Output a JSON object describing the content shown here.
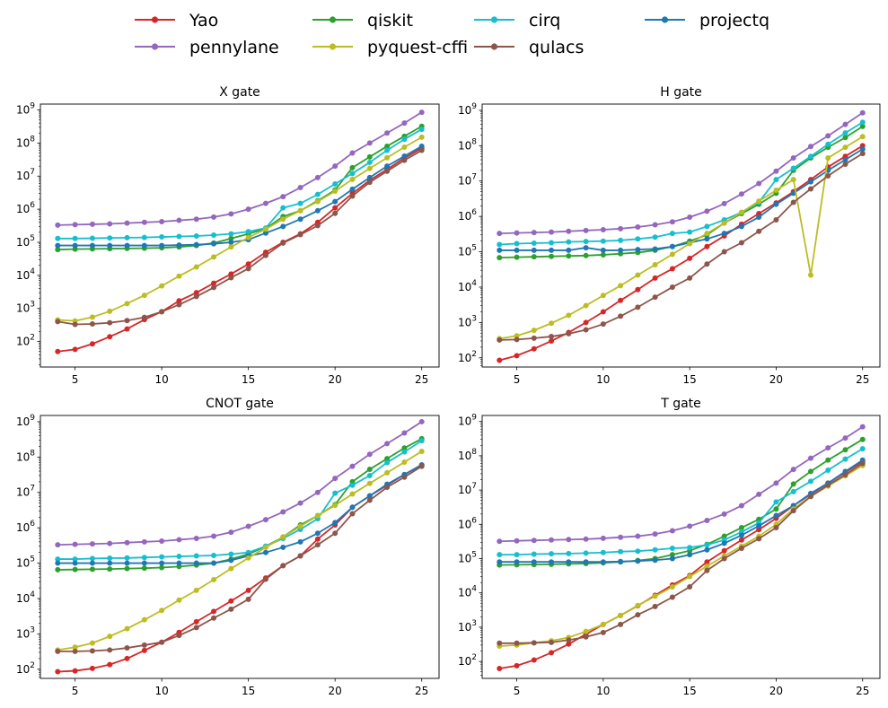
{
  "legend": {
    "placement": "top-center",
    "columns": 4,
    "entries": [
      {
        "name": "Yao",
        "color": "#d62728"
      },
      {
        "name": "qiskit",
        "color": "#2ca02c"
      },
      {
        "name": "cirq",
        "color": "#17becf"
      },
      {
        "name": "projectq",
        "color": "#1f77b4"
      },
      {
        "name": "pennylane",
        "color": "#9467bd"
      },
      {
        "name": "pyquest-cffi",
        "color": "#bcbd22"
      },
      {
        "name": "qulacs",
        "color": "#8c564b"
      }
    ]
  },
  "chart_data": [
    {
      "type": "line",
      "title": "X gate",
      "xlabel": "",
      "ylabel": "",
      "yscale": "log",
      "xlim": [
        3,
        26
      ],
      "ylim": [
        17,
        1500000000
      ],
      "xticks": [
        5,
        10,
        15,
        20,
        25
      ],
      "yticks": [
        "10^2",
        "10^3",
        "10^4",
        "10^5",
        "10^6",
        "10^7",
        "10^8",
        "10^9"
      ],
      "x": [
        4,
        5,
        6,
        7,
        8,
        9,
        10,
        11,
        12,
        13,
        14,
        15,
        16,
        17,
        18,
        19,
        20,
        21,
        22,
        23,
        24,
        25
      ],
      "series": [
        {
          "name": "Yao",
          "color": "#d62728",
          "values": [
            50,
            58,
            85,
            140,
            240,
            460,
            800,
            1700,
            3000,
            5800,
            11000,
            22000,
            50000,
            100000,
            180000,
            400000,
            1100000,
            3000000,
            7500000,
            16000000,
            35000000,
            70000000
          ]
        },
        {
          "name": "qiskit",
          "color": "#2ca02c",
          "values": [
            60000,
            62000,
            63000,
            64000,
            65000,
            66000,
            68000,
            72000,
            80000,
            95000,
            130000,
            180000,
            260000,
            600000,
            900000,
            1800000,
            3800000,
            18000000,
            38000000,
            80000000,
            160000000,
            320000000
          ]
        },
        {
          "name": "cirq",
          "color": "#17becf",
          "values": [
            130000,
            130000,
            132000,
            135000,
            138000,
            140000,
            145000,
            150000,
            155000,
            165000,
            180000,
            210000,
            270000,
            1100000,
            1500000,
            2800000,
            5800000,
            12000000,
            26000000,
            60000000,
            130000000,
            260000000
          ]
        },
        {
          "name": "projectq",
          "color": "#1f77b4",
          "values": [
            80000,
            80000,
            80000,
            80000,
            80000,
            80000,
            80000,
            82000,
            85000,
            90000,
            100000,
            120000,
            190000,
            300000,
            500000,
            900000,
            1700000,
            4000000,
            9000000,
            20000000,
            40000000,
            80000000
          ]
        },
        {
          "name": "pennylane",
          "color": "#9467bd",
          "values": [
            330000,
            340000,
            350000,
            360000,
            380000,
            400000,
            420000,
            460000,
            500000,
            580000,
            720000,
            1000000,
            1500000,
            2400000,
            4500000,
            9000000,
            20000000,
            50000000,
            100000000,
            200000000,
            400000000,
            850000000
          ]
        },
        {
          "name": "pyquest-cffi",
          "color": "#bcbd22",
          "values": [
            450,
            420,
            550,
            820,
            1400,
            2500,
            4800,
            9500,
            18000,
            36000,
            72000,
            140000,
            250000,
            500000,
            900000,
            1700000,
            3500000,
            8000000,
            17000000,
            36000000,
            75000000,
            150000000
          ]
        },
        {
          "name": "qulacs",
          "color": "#8c564b",
          "values": [
            400,
            330,
            340,
            370,
            430,
            540,
            800,
            1300,
            2300,
            4300,
            8500,
            16000,
            40000,
            95000,
            170000,
            320000,
            750000,
            2500000,
            6500000,
            14000000,
            30000000,
            60000000
          ]
        }
      ]
    },
    {
      "type": "line",
      "title": "H gate",
      "xlabel": "",
      "ylabel": "",
      "yscale": "log",
      "xlim": [
        3,
        26
      ],
      "ylim": [
        55,
        1500000000
      ],
      "xticks": [
        5,
        10,
        15,
        20,
        25
      ],
      "yticks": [
        "10^2",
        "10^3",
        "10^4",
        "10^5",
        "10^6",
        "10^7",
        "10^8",
        "10^9"
      ],
      "x": [
        4,
        5,
        6,
        7,
        8,
        9,
        10,
        11,
        12,
        13,
        14,
        15,
        16,
        17,
        18,
        19,
        20,
        21,
        22,
        23,
        24,
        25
      ],
      "series": [
        {
          "name": "Yao",
          "color": "#d62728",
          "values": [
            85,
            115,
            180,
            300,
            520,
            1000,
            2000,
            4200,
            8500,
            18000,
            33000,
            65000,
            140000,
            280000,
            600000,
            1200000,
            2400000,
            5000000,
            11000000,
            25000000,
            50000000,
            100000000
          ]
        },
        {
          "name": "qiskit",
          "color": "#2ca02c",
          "values": [
            68000,
            70000,
            72000,
            74000,
            76000,
            78000,
            82000,
            88000,
            95000,
            110000,
            140000,
            200000,
            300000,
            650000,
            1200000,
            2200000,
            4500000,
            20000000,
            45000000,
            90000000,
            170000000,
            350000000
          ]
        },
        {
          "name": "cirq",
          "color": "#17becf",
          "values": [
            160000,
            170000,
            175000,
            180000,
            190000,
            195000,
            200000,
            210000,
            230000,
            260000,
            330000,
            360000,
            520000,
            800000,
            1300000,
            2500000,
            11000000,
            23000000,
            50000000,
            110000000,
            230000000,
            460000000
          ]
        },
        {
          "name": "projectq",
          "color": "#1f77b4",
          "values": [
            110000,
            110000,
            110000,
            110000,
            110000,
            130000,
            110000,
            110000,
            115000,
            120000,
            140000,
            180000,
            230000,
            330000,
            520000,
            950000,
            2200000,
            4500000,
            9500000,
            20000000,
            40000000,
            80000000
          ]
        },
        {
          "name": "pennylane",
          "color": "#9467bd",
          "values": [
            330000,
            340000,
            350000,
            360000,
            380000,
            400000,
            420000,
            450000,
            500000,
            580000,
            700000,
            950000,
            1400000,
            2300000,
            4300000,
            8500000,
            19000000,
            45000000,
            95000000,
            190000000,
            400000000,
            850000000
          ]
        },
        {
          "name": "pyquest-cffi",
          "color": "#bcbd22",
          "values": [
            350,
            420,
            600,
            950,
            1600,
            3000,
            5800,
            11000,
            22000,
            43000,
            85000,
            170000,
            330000,
            650000,
            1300000,
            2700000,
            5500000,
            11000000,
            22000,
            45000000,
            90000000,
            180000000
          ]
        },
        {
          "name": "qulacs",
          "color": "#8c564b",
          "values": [
            320,
            330,
            360,
            400,
            480,
            620,
            900,
            1500,
            2700,
            5200,
            10000,
            18000,
            45000,
            100000,
            180000,
            380000,
            800000,
            2500000,
            6000000,
            14000000,
            30000000,
            60000000
          ]
        }
      ]
    },
    {
      "type": "line",
      "title": "CNOT gate",
      "xlabel": "",
      "ylabel": "",
      "yscale": "log",
      "xlim": [
        3,
        26
      ],
      "ylim": [
        55,
        1500000000
      ],
      "xticks": [
        5,
        10,
        15,
        20,
        25
      ],
      "yticks": [
        "10^2",
        "10^3",
        "10^4",
        "10^5",
        "10^6",
        "10^7",
        "10^8",
        "10^9"
      ],
      "x": [
        4,
        5,
        6,
        7,
        8,
        9,
        10,
        11,
        12,
        13,
        14,
        15,
        16,
        17,
        18,
        19,
        20,
        21,
        22,
        23,
        24,
        25
      ],
      "series": [
        {
          "name": "Yao",
          "color": "#d62728",
          "values": [
            85,
            90,
            105,
            135,
            200,
            340,
            580,
            1100,
            2200,
            4300,
            8500,
            17000,
            38000,
            85000,
            160000,
            480000,
            1200000,
            3800000,
            8000000,
            16000000,
            32000000,
            60000000
          ]
        },
        {
          "name": "qiskit",
          "color": "#2ca02c",
          "values": [
            65000,
            66000,
            67000,
            68000,
            70000,
            72000,
            75000,
            80000,
            88000,
            100000,
            130000,
            180000,
            300000,
            550000,
            1200000,
            2200000,
            4500000,
            20000000,
            45000000,
            90000000,
            180000000,
            330000000
          ]
        },
        {
          "name": "cirq",
          "color": "#17becf",
          "values": [
            130000,
            130000,
            135000,
            138000,
            140000,
            145000,
            150000,
            155000,
            160000,
            165000,
            180000,
            200000,
            300000,
            500000,
            900000,
            1800000,
            9500000,
            16000000,
            30000000,
            70000000,
            140000000,
            290000000
          ]
        },
        {
          "name": "projectq",
          "color": "#1f77b4",
          "values": [
            100000,
            100000,
            100000,
            100000,
            100000,
            100000,
            100000,
            100000,
            100000,
            100000,
            120000,
            160000,
            200000,
            280000,
            400000,
            700000,
            1400000,
            3800000,
            8000000,
            17000000,
            32000000,
            60000000
          ]
        },
        {
          "name": "pennylane",
          "color": "#9467bd",
          "values": [
            330000,
            340000,
            350000,
            360000,
            380000,
            400000,
            420000,
            460000,
            500000,
            580000,
            750000,
            1100000,
            1700000,
            2800000,
            5000000,
            10000000,
            25000000,
            55000000,
            120000000,
            240000000,
            480000000,
            1000000000
          ]
        },
        {
          "name": "pyquest-cffi",
          "color": "#bcbd22",
          "values": [
            350,
            420,
            550,
            850,
            1400,
            2500,
            4600,
            9000,
            17000,
            34000,
            70000,
            140000,
            280000,
            550000,
            1100000,
            2200000,
            4300000,
            9000000,
            18000000,
            36000000,
            72000000,
            145000000
          ]
        },
        {
          "name": "qulacs",
          "color": "#8c564b",
          "values": [
            320,
            320,
            330,
            350,
            400,
            480,
            580,
            900,
            1500,
            2800,
            5000,
            9500,
            35000,
            85000,
            160000,
            330000,
            700000,
            2500000,
            6000000,
            14000000,
            27000000,
            55000000
          ]
        }
      ]
    },
    {
      "type": "line",
      "title": "T gate",
      "xlabel": "",
      "ylabel": "",
      "yscale": "log",
      "xlim": [
        3,
        26
      ],
      "ylim": [
        32,
        1500000000
      ],
      "xticks": [
        5,
        10,
        15,
        20,
        25
      ],
      "yticks": [
        "10^2",
        "10^3",
        "10^4",
        "10^5",
        "10^6",
        "10^7",
        "10^8",
        "10^9"
      ],
      "x": [
        4,
        5,
        6,
        7,
        8,
        9,
        10,
        11,
        12,
        13,
        14,
        15,
        16,
        17,
        18,
        19,
        20,
        21,
        22,
        23,
        24,
        25
      ],
      "series": [
        {
          "name": "Yao",
          "color": "#d62728",
          "values": [
            62,
            75,
            110,
            180,
            320,
            620,
            1200,
            2200,
            4200,
            8500,
            17000,
            32000,
            80000,
            170000,
            350000,
            700000,
            1500000,
            3500000,
            7500000,
            16000000,
            33000000,
            68000000
          ]
        },
        {
          "name": "qiskit",
          "color": "#2ca02c",
          "values": [
            65000,
            66000,
            67000,
            68000,
            70000,
            72000,
            75000,
            80000,
            88000,
            100000,
            130000,
            170000,
            260000,
            450000,
            800000,
            1400000,
            2800000,
            15000000,
            35000000,
            75000000,
            150000000,
            300000000
          ]
        },
        {
          "name": "cirq",
          "color": "#17becf",
          "values": [
            130000,
            130000,
            135000,
            138000,
            140000,
            145000,
            150000,
            160000,
            165000,
            180000,
            200000,
            210000,
            250000,
            350000,
            600000,
            1100000,
            4500000,
            9000000,
            18000000,
            38000000,
            80000000,
            160000000
          ]
        },
        {
          "name": "projectq",
          "color": "#1f77b4",
          "values": [
            80000,
            80000,
            80000,
            80000,
            80000,
            80000,
            80000,
            82000,
            85000,
            90000,
            100000,
            130000,
            180000,
            280000,
            480000,
            900000,
            1800000,
            3500000,
            8000000,
            16000000,
            35000000,
            75000000
          ]
        },
        {
          "name": "pennylane",
          "color": "#9467bd",
          "values": [
            320000,
            330000,
            340000,
            350000,
            360000,
            370000,
            390000,
            420000,
            450000,
            520000,
            650000,
            880000,
            1300000,
            2000000,
            3500000,
            7500000,
            16000000,
            40000000,
            85000000,
            170000000,
            330000000,
            700000000
          ]
        },
        {
          "name": "pyquest-cffi",
          "color": "#bcbd22",
          "values": [
            280,
            300,
            350,
            400,
            500,
            750,
            1200,
            2200,
            4300,
            8000,
            15000,
            30000,
            60000,
            120000,
            230000,
            450000,
            1000000,
            2800000,
            6500000,
            13000000,
            26000000,
            52000000
          ]
        },
        {
          "name": "qulacs",
          "color": "#8c564b",
          "values": [
            340,
            340,
            350,
            360,
            420,
            520,
            700,
            1200,
            2300,
            4000,
            7500,
            15000,
            45000,
            100000,
            200000,
            380000,
            800000,
            2500000,
            6500000,
            14000000,
            28000000,
            60000000
          ]
        }
      ]
    }
  ]
}
